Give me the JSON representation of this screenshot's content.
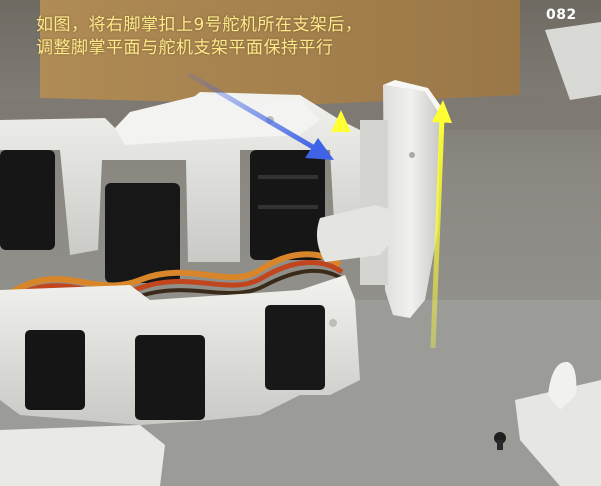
{
  "caption": {
    "line1": "如图，将右脚掌扣上9号舵机所在支架后，",
    "line2": "调整脚掌平面与舵机支架平面保持平行"
  },
  "page_number": "082",
  "colors": {
    "caption_text": "#ffe98a",
    "page_number": "#ffffff",
    "pointer_arrow": "#3f63e6",
    "parallel_arrows": "#ffff33",
    "servo_body": "#161616",
    "bracket": "#e7e7e4"
  },
  "scene": {
    "subject": "humanoid-robot-leg",
    "objects": [
      "servo-bracket-stack",
      "right-foot-plate",
      "spare-foot-plate",
      "screw"
    ]
  }
}
